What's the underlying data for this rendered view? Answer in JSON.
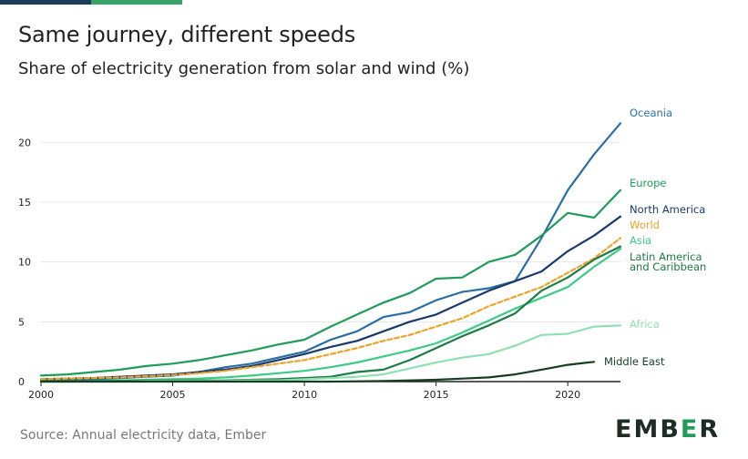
{
  "title": "Same journey, different speeds",
  "subtitle": "Share of electricity generation from solar and wind (%)",
  "source": "Source: Annual electricity data, Ember",
  "logo": "EMBER",
  "colors": {
    "bar_dark": "#1b3a5c",
    "bar_green": "#3aa36a",
    "logo": "#1e2d24",
    "logo_accent": "#1f9c5a"
  },
  "chart_data": {
    "type": "line",
    "xlim": [
      2000,
      2022
    ],
    "ylim": [
      0,
      22
    ],
    "xticks": [
      2000,
      2005,
      2010,
      2015,
      2020
    ],
    "yticks": [
      0,
      5,
      10,
      15,
      20
    ],
    "grid": "horizontal",
    "x": [
      2000,
      2001,
      2002,
      2003,
      2004,
      2005,
      2006,
      2007,
      2008,
      2009,
      2010,
      2011,
      2012,
      2013,
      2014,
      2015,
      2016,
      2017,
      2018,
      2019,
      2020,
      2021,
      2022
    ],
    "series": [
      {
        "name": "Oceania",
        "color": "#2a6ea6",
        "dashed": false,
        "values": [
          0.1,
          0.15,
          0.2,
          0.3,
          0.4,
          0.5,
          0.8,
          1.2,
          1.5,
          2.0,
          2.5,
          3.5,
          4.2,
          5.4,
          5.8,
          6.8,
          7.5,
          7.8,
          8.4,
          12.0,
          16.0,
          19.0,
          21.6
        ]
      },
      {
        "name": "Europe",
        "color": "#1f9c5a",
        "dashed": false,
        "values": [
          0.5,
          0.6,
          0.8,
          1.0,
          1.3,
          1.5,
          1.8,
          2.2,
          2.6,
          3.1,
          3.5,
          4.6,
          5.6,
          6.6,
          7.4,
          8.6,
          8.7,
          10.0,
          10.6,
          12.2,
          14.1,
          13.7,
          16.0
        ]
      },
      {
        "name": "North America",
        "color": "#1b3a6b",
        "dashed": false,
        "values": [
          0.2,
          0.25,
          0.3,
          0.4,
          0.5,
          0.6,
          0.8,
          1.0,
          1.3,
          1.8,
          2.3,
          2.9,
          3.4,
          4.2,
          5.0,
          5.6,
          6.6,
          7.6,
          8.4,
          9.2,
          10.9,
          12.2,
          13.8
        ]
      },
      {
        "name": "World",
        "color": "#f0a227",
        "dashed": true,
        "values": [
          0.2,
          0.25,
          0.3,
          0.35,
          0.45,
          0.55,
          0.7,
          0.9,
          1.2,
          1.5,
          1.8,
          2.3,
          2.8,
          3.4,
          3.9,
          4.6,
          5.3,
          6.3,
          7.1,
          7.9,
          9.1,
          10.3,
          12.0
        ]
      },
      {
        "name": "Asia",
        "color": "#3ccb85",
        "dashed": false,
        "values": [
          0.0,
          0.0,
          0.05,
          0.1,
          0.15,
          0.2,
          0.25,
          0.35,
          0.5,
          0.7,
          0.9,
          1.2,
          1.6,
          2.1,
          2.6,
          3.2,
          4.1,
          5.1,
          6.1,
          7.0,
          7.9,
          9.6,
          11.1
        ]
      },
      {
        "name": "Latin America and Caribbean",
        "color": "#1d7a44",
        "dashed": false,
        "values": [
          0.05,
          0.05,
          0.05,
          0.05,
          0.1,
          0.1,
          0.1,
          0.1,
          0.15,
          0.2,
          0.3,
          0.4,
          0.8,
          1.0,
          1.8,
          2.8,
          3.8,
          4.7,
          5.7,
          7.6,
          8.7,
          10.2,
          11.3
        ]
      },
      {
        "name": "Africa",
        "color": "#8fe0b3",
        "dashed": false,
        "values": [
          0.0,
          0.0,
          0.0,
          0.0,
          0.05,
          0.05,
          0.05,
          0.05,
          0.1,
          0.1,
          0.2,
          0.3,
          0.4,
          0.6,
          1.1,
          1.6,
          2.0,
          2.3,
          3.0,
          3.9,
          4.0,
          4.6,
          4.7
        ]
      },
      {
        "name": "Middle East",
        "color": "#143d24",
        "dashed": false,
        "values": [
          0.0,
          0.0,
          0.0,
          0.0,
          0.0,
          0.0,
          0.0,
          0.0,
          0.0,
          0.0,
          0.0,
          0.0,
          0.02,
          0.05,
          0.1,
          0.15,
          0.25,
          0.35,
          0.6,
          1.0,
          1.4,
          1.65,
          null
        ]
      }
    ],
    "end_labels": [
      {
        "text": "Oceania",
        "series": "Oceania"
      },
      {
        "text": "Europe",
        "series": "Europe"
      },
      {
        "text": "North America",
        "series": "North America"
      },
      {
        "text": "World",
        "series": "World"
      },
      {
        "text": "Asia",
        "series": "Asia"
      },
      {
        "text": "Latin America",
        "series": "Latin America and Caribbean"
      },
      {
        "text": "and Caribbean",
        "series": "Latin America and Caribbean"
      },
      {
        "text": "Africa",
        "series": "Africa"
      },
      {
        "text": "Middle East",
        "series": "Middle East"
      }
    ]
  }
}
